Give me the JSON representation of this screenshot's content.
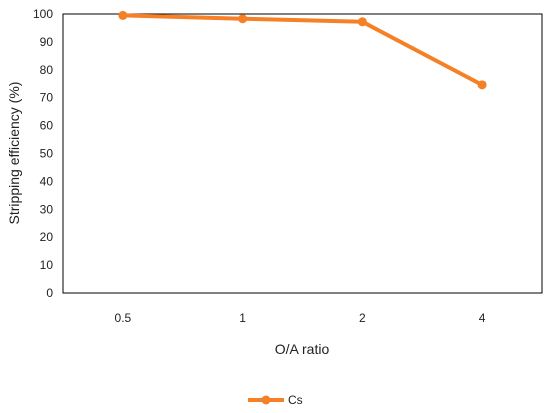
{
  "chart_data": {
    "type": "line",
    "categories": [
      "0.5",
      "1",
      "2",
      "4"
    ],
    "series": [
      {
        "name": "Cs",
        "values": [
          99.5,
          98.3,
          97.2,
          74.6
        ],
        "color": "#F58025"
      }
    ],
    "xlabel": "O/A ratio",
    "ylabel": "Stripping efficiency (%)",
    "ylim": [
      0,
      100
    ],
    "yticks": [
      0,
      10,
      20,
      30,
      40,
      50,
      60,
      70,
      80,
      90,
      100
    ],
    "grid": false,
    "legend": "bottom-center"
  }
}
